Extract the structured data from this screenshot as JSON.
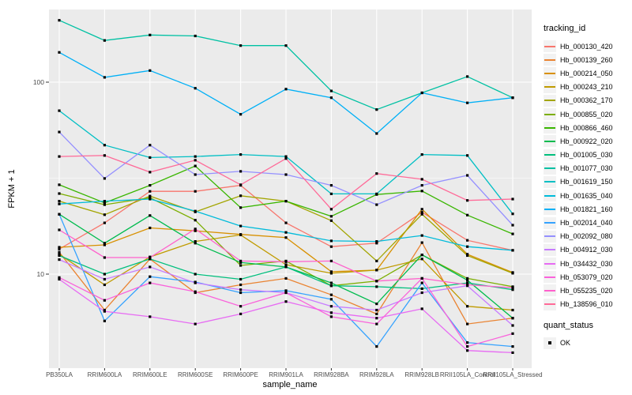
{
  "chart_data": {
    "type": "line",
    "title": "",
    "x_label": "sample_name",
    "y_label": "FPKM + 1",
    "y_scale": "log10",
    "y_ticks": [
      {
        "label": "100",
        "value": 100
      },
      {
        "label": "10",
        "value": 10
      }
    ],
    "y_minor_ticks": [
      31.623
    ],
    "legend_title": "tracking_id",
    "quant_legend_title": "quant_status",
    "quant_entries": [
      {
        "label": "OK",
        "marker": "black-square"
      }
    ],
    "marker": {
      "shape": "square",
      "color": "#000000"
    },
    "panel_bg": "#EBEBEB",
    "grid_color": "#FFFFFF",
    "tick_label_color": "#4D4D4D",
    "categories": [
      "PB350LA",
      "RRIM600LA",
      "RRIM600LE",
      "RRIM600SE",
      "RRIM600PE",
      "RRIM901LA",
      "RRIM928BA",
      "RRIM928LA",
      "RRIM928LB",
      "RRII105LA_Control",
      "RRII105LA_Stressed"
    ],
    "series": [
      {
        "name": "Hb_000130_420",
        "color": "#F8766D",
        "values": [
          13.5,
          18.5,
          27,
          27,
          29,
          18.5,
          13.9,
          14.5,
          21,
          15,
          13.3
        ]
      },
      {
        "name": "Hb_000139_260",
        "color": "#EA8331",
        "values": [
          13,
          6.5,
          12,
          8,
          8.8,
          9.5,
          7.8,
          6.2,
          14.6,
          5.5,
          5.9
        ]
      },
      {
        "name": "Hb_000214_050",
        "color": "#D89000",
        "values": [
          13.8,
          14.2,
          17.4,
          16.8,
          16.1,
          15.5,
          10.3,
          10.5,
          21.8,
          12.7,
          10.2
        ]
      },
      {
        "name": "Hb_000243_210",
        "color": "#C09B00",
        "values": [
          12.7,
          8.8,
          12.3,
          14.8,
          16,
          11.2,
          10.1,
          10.5,
          12,
          6.8,
          6.5
        ]
      },
      {
        "name": "Hb_000362_170",
        "color": "#A3A500",
        "values": [
          24,
          20.4,
          25.5,
          21.1,
          25.6,
          24,
          19,
          11.7,
          20.5,
          12.5,
          10.1
        ]
      },
      {
        "name": "Hb_000855_020",
        "color": "#7CAE00",
        "values": [
          26.3,
          23,
          25,
          19.1,
          11.1,
          11.7,
          8.7,
          9.2,
          12.6,
          9.5,
          8.6
        ]
      },
      {
        "name": "Hb_000866_460",
        "color": "#39B600",
        "values": [
          29.2,
          23.5,
          29,
          36.6,
          22.2,
          24,
          20,
          26,
          27.1,
          20.3,
          16.2
        ]
      },
      {
        "name": "Hb_000922_020",
        "color": "#00BB4E",
        "values": [
          20.5,
          14.5,
          20.2,
          14.5,
          11.5,
          10.9,
          9,
          7,
          12.6,
          9.3,
          5.9
        ]
      },
      {
        "name": "Hb_001005_030",
        "color": "#00BF7D",
        "values": [
          12.5,
          10,
          12,
          10,
          9.4,
          10.9,
          8.7,
          8.6,
          8.4,
          9,
          8.3
        ]
      },
      {
        "name": "Hb_001077_030",
        "color": "#00C1A3",
        "values": [
          210,
          165,
          176,
          174,
          155,
          155,
          90,
          72,
          88,
          107,
          83
        ]
      },
      {
        "name": "Hb_001619_150",
        "color": "#00BFC4",
        "values": [
          71,
          47,
          40.5,
          41,
          42,
          41,
          26.2,
          26.2,
          42,
          41.5,
          20.6
        ]
      },
      {
        "name": "Hb_001635_040",
        "color": "#00BBDA",
        "values": [
          23.2,
          24,
          24.6,
          21.3,
          17.8,
          16.5,
          14.9,
          14.8,
          15.9,
          13.9,
          13.3
        ]
      },
      {
        "name": "Hb_001821_160",
        "color": "#00B0F6",
        "values": [
          143,
          106,
          115,
          93,
          68,
          92,
          83,
          54,
          88,
          78,
          83
        ]
      },
      {
        "name": "Hb_002014_040",
        "color": "#35A2FF",
        "values": [
          20.5,
          5.7,
          9.7,
          9.1,
          8,
          8.2,
          7.4,
          4.2,
          9,
          4.4,
          4.2
        ]
      },
      {
        "name": "Hb_002092_080",
        "color": "#9590FF",
        "values": [
          55,
          31.5,
          47,
          33,
          34.3,
          33,
          29,
          23,
          29,
          32.7,
          18
        ]
      },
      {
        "name": "Hb_004912_030",
        "color": "#C77CFF",
        "values": [
          11.9,
          9.4,
          10.9,
          9,
          8.3,
          8,
          6.8,
          6.5,
          8,
          8.7,
          5.4
        ]
      },
      {
        "name": "Hb_034432_030",
        "color": "#E76BF3",
        "values": [
          9.4,
          6.4,
          6,
          5.5,
          6.2,
          7.2,
          6.3,
          5.9,
          6.6,
          4,
          3.9
        ]
      },
      {
        "name": "Hb_053079_020",
        "color": "#FA62DB",
        "values": [
          9.6,
          7.3,
          9,
          8.1,
          6.8,
          8,
          6,
          5.5,
          9.5,
          4.2,
          4.9
        ]
      },
      {
        "name": "Hb_055235_020",
        "color": "#FF61CC",
        "values": [
          17,
          12.2,
          12.2,
          17.2,
          11.7,
          11.6,
          11.7,
          9.2,
          9.5,
          8.8,
          8.5
        ]
      },
      {
        "name": "Hb_138596_010",
        "color": "#FF6A98",
        "values": [
          41,
          41.5,
          34,
          39.2,
          29.2,
          40,
          21.8,
          33.4,
          31.2,
          24.2,
          24.6
        ]
      }
    ]
  }
}
